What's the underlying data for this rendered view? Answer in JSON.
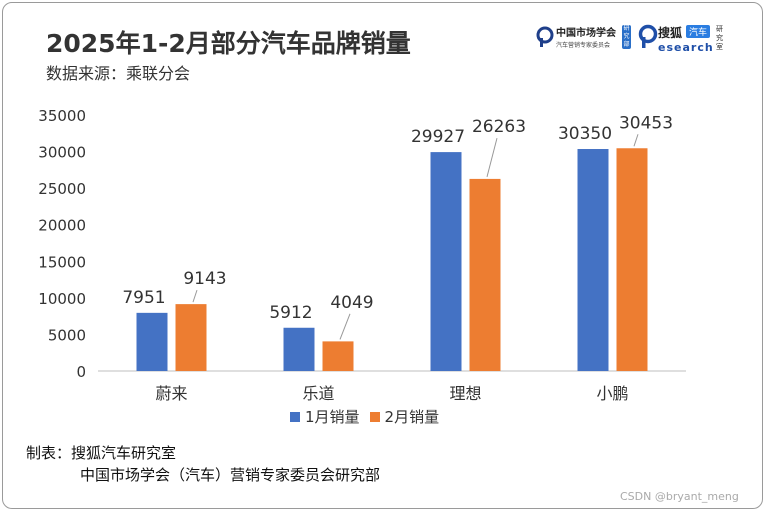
{
  "title": "2025年1-2月部分汽车品牌销量",
  "subtitle": "数据来源：乘联分会",
  "logos": {
    "left_name": "中国市场学会",
    "left_sub": "汽车营销专家委员会",
    "left_side": "研究部",
    "right_name": "搜狐",
    "right_tag": "汽车",
    "right_sub": "esearch",
    "right_side": "研究室"
  },
  "chart_data": {
    "type": "bar",
    "categories": [
      "蔚来",
      "乐道",
      "理想",
      "小鹏"
    ],
    "series": [
      {
        "name": "1月销量",
        "values": [
          7951,
          5912,
          29927,
          30350
        ],
        "color": "#4472c4"
      },
      {
        "name": "2月销量",
        "values": [
          9143,
          4049,
          26263,
          30453
        ],
        "color": "#ed7d31"
      }
    ],
    "ylim": [
      0,
      35000
    ],
    "yticks": [
      0,
      5000,
      10000,
      15000,
      20000,
      25000,
      30000,
      35000
    ],
    "grid": false,
    "legend": "bottom"
  },
  "credits": {
    "line1": "制表：搜狐汽车研究室",
    "line2": "中国市场学会（汽车）营销专家委员会研究部"
  },
  "watermark": "CSDN @bryant_meng"
}
